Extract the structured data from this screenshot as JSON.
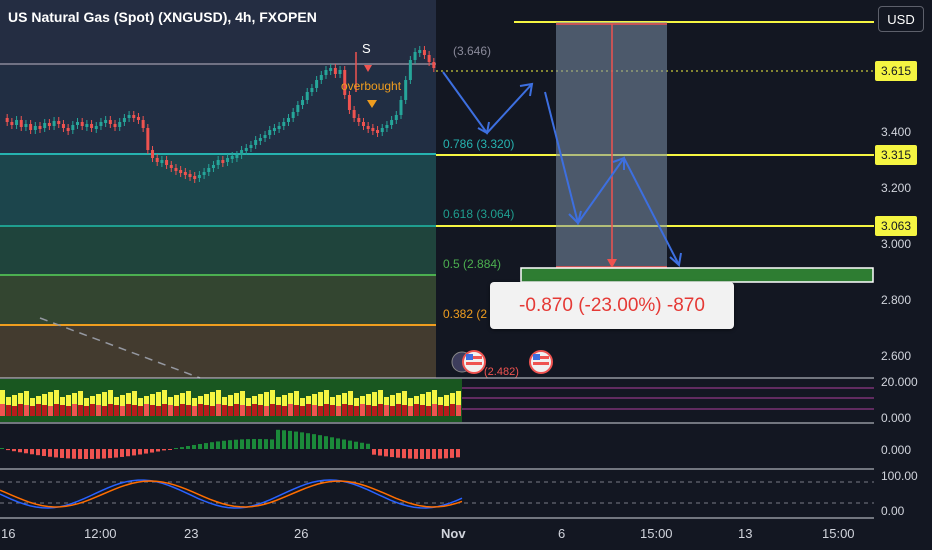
{
  "header": {
    "title": "US Natural Gas (Spot) (XNGUSD), 4h, FXOPEN",
    "currency_button": "USD"
  },
  "price_axis": {
    "labels": [
      "3.400",
      "3.200",
      "3.000",
      "2.800",
      "2.600"
    ],
    "tags": [
      "3.615",
      "3.315",
      "3.063"
    ]
  },
  "fib_labels": {
    "top": "(3.646)",
    "l786": "0.786 (3.320)",
    "l618": "0.618 (3.064)",
    "l5": "0.5 (2.884)",
    "l382": "0.382 (2",
    "bottom": "(2.482)"
  },
  "annotations": {
    "signal": "S",
    "overbought": "overbought"
  },
  "measure": {
    "text": "-0.870 (-23.00%) -870"
  },
  "time_axis": [
    "16",
    "12:00",
    "23",
    "26",
    "Nov",
    "6",
    "15:00",
    "13",
    "15:00"
  ],
  "indicators": {
    "vol_top": "20.000",
    "vol_bottom": "0.000",
    "macd_zero": "0.000",
    "stoch_top": "100.00",
    "stoch_bottom": "0.00"
  },
  "colors": {
    "background": "#131722",
    "candle_up": "#26a69a",
    "candle_down": "#ef5350",
    "fib_blue": "#26a69a",
    "yellow_line": "#f5f542",
    "projection_arrow": "#3d6fe0",
    "measure_box": "#7b8fa8"
  },
  "chart_data": {
    "type": "candlestick",
    "title": "US Natural Gas (Spot) (XNGUSD), 4h, FXOPEN",
    "x_ticks": [
      "16",
      "12:00",
      "23",
      "26",
      "Nov",
      "6",
      "15:00",
      "13",
      "15:00"
    ],
    "y_ticks": [
      3.4,
      3.2,
      3.0,
      2.8,
      2.6
    ],
    "horizontal_levels": [
      3.615,
      3.315,
      3.063,
      2.884
    ],
    "fib_levels": [
      {
        "ratio": 0.786,
        "price": 3.32
      },
      {
        "ratio": 0.618,
        "price": 3.064
      },
      {
        "ratio": 0.5,
        "price": 2.884
      }
    ],
    "measure": {
      "change": -0.87,
      "percent": -23.0,
      "ticks": -870
    }
  }
}
